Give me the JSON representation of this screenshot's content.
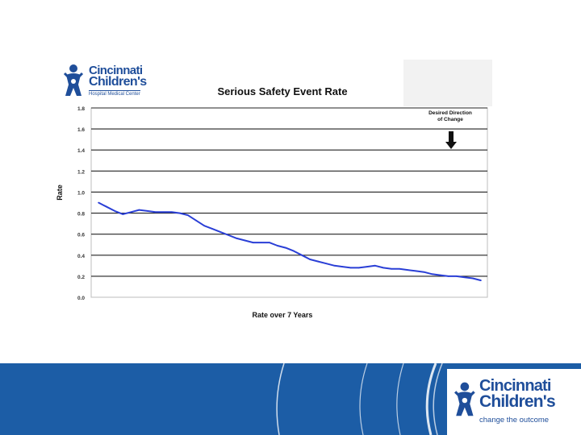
{
  "logo_top": {
    "line1": "Cincinnati",
    "line2": "Children's",
    "line3": "Hospital Medical Center"
  },
  "logo_bottom": {
    "line1": "Cincinnati",
    "line2": "Children's",
    "line3": "change the outcome"
  },
  "annotation": {
    "line1": "Desired Direction",
    "line2": "of Change"
  },
  "colors": {
    "series": "#2a3fd6",
    "band": "#1c5da6",
    "brand": "#1f4e9a"
  },
  "chart_data": {
    "type": "line",
    "title": "Serious Safety Event Rate",
    "xlabel": "Rate over 7 Years",
    "ylabel": "Rate",
    "ylim": [
      0,
      1.8
    ],
    "ytick_labels": [
      "0.0",
      "0.2",
      "0.4",
      "0.6",
      "0.8",
      "1.0",
      "1.2",
      "1.4",
      "1.6",
      "1.8"
    ],
    "grid": true,
    "series": [
      {
        "values": [
          0.9,
          0.86,
          0.82,
          0.79,
          0.81,
          0.83,
          0.82,
          0.81,
          0.81,
          0.81,
          0.8,
          0.78,
          0.73,
          0.68,
          0.65,
          0.62,
          0.59,
          0.56,
          0.54,
          0.52,
          0.52,
          0.52,
          0.49,
          0.47,
          0.44,
          0.4,
          0.36,
          0.34,
          0.32,
          0.3,
          0.29,
          0.28,
          0.28,
          0.29,
          0.3,
          0.28,
          0.27,
          0.27,
          0.26,
          0.25,
          0.24,
          0.22,
          0.21,
          0.2,
          0.2,
          0.19,
          0.18,
          0.16
        ]
      }
    ]
  }
}
